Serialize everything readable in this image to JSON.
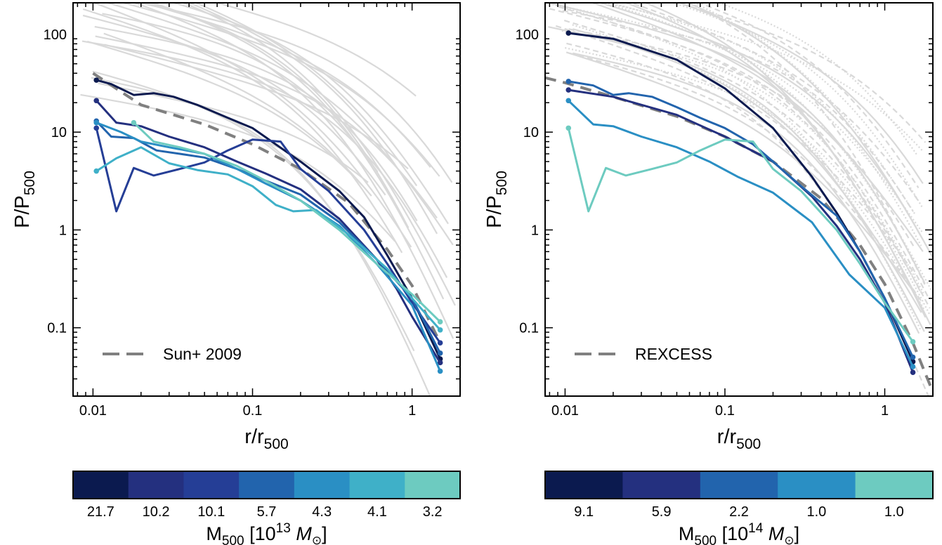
{
  "chart_data": [
    {
      "type": "line",
      "log_x": true,
      "log_y": true,
      "xlim": [
        0.0075,
        2.0
      ],
      "ylim": [
        0.02,
        210
      ],
      "xlabel": {
        "base": "r/r",
        "sub": "500"
      },
      "ylabel": {
        "base": "P/P",
        "sub": "500"
      },
      "x_ticks": [
        0.01,
        0.1,
        1
      ],
      "x_tick_labels": [
        "0.01",
        "0.1",
        "1"
      ],
      "y_ticks": [
        0.1,
        1,
        10,
        100
      ],
      "y_tick_labels": [
        "0.1",
        "1",
        "10",
        "100"
      ],
      "legend": {
        "label": "Sun+ 2009",
        "location": "lower-left",
        "style": "dashed",
        "color": "#808080"
      },
      "reference_curve": {
        "x": [
          0.01,
          0.02,
          0.05,
          0.1,
          0.2,
          0.4,
          0.7,
          1.0,
          1.5
        ],
        "y": [
          40,
          19,
          12,
          7.5,
          4.2,
          1.9,
          0.63,
          0.27,
          0.07
        ],
        "color": "#808080",
        "dashed": true
      },
      "background_curves_color": "#d9d9d9",
      "series": [
        {
          "color": "#0b1a4f",
          "x": [
            0.0105,
            0.013,
            0.018,
            0.024,
            0.032,
            0.045,
            0.07,
            0.1,
            0.2,
            0.35,
            0.5,
            0.7,
            1.0,
            1.5
          ],
          "y": [
            34,
            31,
            24,
            25,
            23,
            19,
            14,
            11,
            5,
            2.5,
            1.35,
            0.55,
            0.2,
            0.048
          ]
        },
        {
          "color": "#24307f",
          "x": [
            0.0105,
            0.014,
            0.02,
            0.03,
            0.05,
            0.08,
            0.12,
            0.2,
            0.35,
            0.6,
            0.8,
            1.0,
            1.5
          ],
          "y": [
            21,
            12.5,
            11.5,
            9,
            7,
            5,
            3.8,
            2.6,
            1.3,
            0.5,
            0.25,
            0.13,
            0.044
          ]
        },
        {
          "color": "#253e96",
          "x": [
            0.0105,
            0.014,
            0.018,
            0.024,
            0.035,
            0.05,
            0.07,
            0.1,
            0.15,
            0.2,
            0.3,
            0.5,
            0.7,
            1.0,
            1.5
          ],
          "y": [
            11,
            1.55,
            4.3,
            3.6,
            4.2,
            4.9,
            6.5,
            8.4,
            8.0,
            4.2,
            2.5,
            1.0,
            0.45,
            0.18,
            0.07
          ]
        },
        {
          "color": "#2264ad",
          "x": [
            0.0105,
            0.013,
            0.018,
            0.025,
            0.035,
            0.05,
            0.08,
            0.12,
            0.2,
            0.35,
            0.6,
            1.0,
            1.5
          ],
          "y": [
            13,
            9,
            8.7,
            6.5,
            6.0,
            5.5,
            4.2,
            3.2,
            2.3,
            1.2,
            0.5,
            0.2,
            0.055
          ]
        },
        {
          "color": "#2a8fc4",
          "x": [
            0.0105,
            0.015,
            0.02,
            0.03,
            0.05,
            0.08,
            0.12,
            0.2,
            0.35,
            0.6,
            1.0,
            1.5
          ],
          "y": [
            12.5,
            10,
            8,
            7,
            6,
            4.2,
            3.0,
            2.0,
            1.1,
            0.45,
            0.17,
            0.036
          ]
        },
        {
          "color": "#3fb0c8",
          "x": [
            0.0105,
            0.014,
            0.02,
            0.03,
            0.045,
            0.07,
            0.1,
            0.14,
            0.18,
            0.25,
            0.4,
            0.7,
            1.0,
            1.5
          ],
          "y": [
            4.0,
            5.4,
            7.0,
            4.8,
            4.1,
            3.7,
            2.8,
            1.8,
            1.55,
            1.6,
            0.9,
            0.4,
            0.2,
            0.095
          ]
        },
        {
          "color": "#6dcbc0",
          "x": [
            0.018,
            0.024,
            0.035,
            0.05,
            0.08,
            0.12,
            0.2,
            0.35,
            0.6,
            1.0,
            1.5
          ],
          "y": [
            12.5,
            8,
            7,
            6,
            4.5,
            3.2,
            2.0,
            1.0,
            0.45,
            0.22,
            0.115
          ]
        }
      ],
      "colorbar": {
        "colors": [
          "#0b1a4f",
          "#24307f",
          "#253e96",
          "#2264ad",
          "#2a8fc4",
          "#3fb0c8",
          "#6dcbc0"
        ],
        "labels": [
          "21.7",
          "10.2",
          "10.1",
          "5.7",
          "4.3",
          "4.1",
          "3.2"
        ],
        "label": {
          "pre": "M",
          "sub": "500",
          "mid": " [10",
          "sup": "13",
          "unit": "M",
          "unit_sub": "⊙",
          "post": "]"
        }
      }
    },
    {
      "type": "line",
      "log_x": true,
      "log_y": true,
      "xlim": [
        0.0075,
        2.0
      ],
      "ylim": [
        0.02,
        210
      ],
      "xlabel": {
        "base": "r/r",
        "sub": "500"
      },
      "ylabel": {
        "base": "P/P",
        "sub": "500"
      },
      "x_ticks": [
        0.01,
        0.1,
        1
      ],
      "x_tick_labels": [
        "0.01",
        "0.1",
        "1"
      ],
      "y_ticks": [
        0.1,
        1,
        10,
        100
      ],
      "y_tick_labels": [
        "0.1",
        "1",
        "10",
        "100"
      ],
      "legend": {
        "label": "REXCESS",
        "location": "lower-left",
        "style": "dashed",
        "color": "#808080"
      },
      "reference_curve": {
        "x": [
          0.0075,
          0.01,
          0.02,
          0.05,
          0.1,
          0.2,
          0.4,
          0.7,
          1.0,
          1.5,
          2.0
        ],
        "y": [
          36,
          32,
          23,
          14.5,
          9,
          5,
          2.1,
          0.7,
          0.28,
          0.07,
          0.022
        ],
        "color": "#808080",
        "dashed": true
      },
      "background_curves_color": "#d9d9d9",
      "series": [
        {
          "color": "#0b1a4f",
          "x": [
            0.0105,
            0.02,
            0.05,
            0.1,
            0.2,
            0.35,
            0.5,
            0.7,
            1.0,
            1.5
          ],
          "y": [
            103,
            90,
            55,
            28,
            11,
            3.5,
            1.5,
            0.6,
            0.2,
            0.045
          ]
        },
        {
          "color": "#24307f",
          "x": [
            0.0105,
            0.02,
            0.05,
            0.1,
            0.2,
            0.35,
            0.5,
            0.7,
            1.0,
            1.5
          ],
          "y": [
            27,
            23,
            15,
            9,
            5,
            2.2,
            1.1,
            0.5,
            0.18,
            0.035
          ]
        },
        {
          "color": "#2264ad",
          "x": [
            0.0105,
            0.015,
            0.02,
            0.025,
            0.035,
            0.05,
            0.07,
            0.1,
            0.15,
            0.2,
            0.3,
            0.5,
            0.7,
            1.0,
            1.5
          ],
          "y": [
            33,
            30,
            24,
            25,
            23,
            18,
            14,
            11,
            7.5,
            5,
            2.8,
            1.4,
            0.6,
            0.2,
            0.05
          ]
        },
        {
          "color": "#2a8fc4",
          "x": [
            0.0105,
            0.015,
            0.02,
            0.03,
            0.05,
            0.08,
            0.12,
            0.2,
            0.35,
            0.6,
            1.0,
            1.5
          ],
          "y": [
            21,
            12,
            11.5,
            9,
            7,
            5,
            3.5,
            2.4,
            1.2,
            0.35,
            0.16,
            0.04
          ]
        },
        {
          "color": "#6dcbc0",
          "x": [
            0.0105,
            0.014,
            0.018,
            0.024,
            0.035,
            0.05,
            0.07,
            0.1,
            0.15,
            0.2,
            0.3,
            0.5,
            0.7,
            1.0,
            1.5
          ],
          "y": [
            11,
            1.55,
            4.3,
            3.6,
            4.2,
            4.9,
            6.5,
            8.4,
            8.0,
            4.2,
            2.5,
            1.0,
            0.45,
            0.18,
            0.072
          ]
        }
      ],
      "colorbar": {
        "colors": [
          "#0b1a4f",
          "#24307f",
          "#2264ad",
          "#2a8fc4",
          "#6dcbc0"
        ],
        "labels": [
          "9.1",
          "5.9",
          "2.2",
          "1.0",
          "1.0"
        ],
        "label": {
          "pre": "M",
          "sub": "500",
          "mid": " [10",
          "sup": "14",
          "unit": "M",
          "unit_sub": "⊙",
          "post": "]"
        }
      }
    }
  ]
}
